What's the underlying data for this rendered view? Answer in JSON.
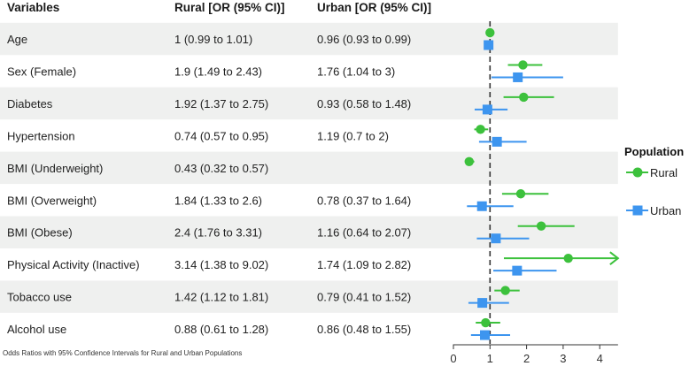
{
  "table": {
    "headers": [
      "Variables",
      "Rural [OR (95% CI)]",
      "Urban [OR (95% CI)]"
    ],
    "rows": [
      {
        "variable": "Age",
        "rural": "1 (0.99 to 1.01)",
        "urban": "0.96 (0.93 to 0.99)"
      },
      {
        "variable": "Sex (Female)",
        "rural": "1.9 (1.49 to 2.43)",
        "urban": "1.76 (1.04 to 3)"
      },
      {
        "variable": "Diabetes",
        "rural": "1.92 (1.37 to 2.75)",
        "urban": "0.93 (0.58 to 1.48)"
      },
      {
        "variable": "Hypertension",
        "rural": "0.74 (0.57 to 0.95)",
        "urban": "1.19 (0.7 to 2)"
      },
      {
        "variable": "BMI (Underweight)",
        "rural": "0.43 (0.32 to 0.57)",
        "urban": ""
      },
      {
        "variable": "BMI (Overweight)",
        "rural": "1.84 (1.33 to 2.6)",
        "urban": "0.78 (0.37 to 1.64)"
      },
      {
        "variable": "BMI (Obese)",
        "rural": "2.4 (1.76 to 3.31)",
        "urban": "1.16 (0.64 to 2.07)"
      },
      {
        "variable": "Physical Activity (Inactive)",
        "rural": "3.14 (1.38 to 9.02)",
        "urban": "1.74 (1.09 to 2.82)"
      },
      {
        "variable": "Tobacco use",
        "rural": "1.42 (1.12 to 1.81)",
        "urban": "0.79 (0.41 to 1.52)"
      },
      {
        "variable": "Alcohol use",
        "rural": "0.88 (0.61 to 1.28)",
        "urban": "0.86 (0.48 to 1.55)"
      }
    ]
  },
  "caption": "Odds Ratios with 95% Confidence Intervals for Rural and Urban Populations",
  "chart_data": {
    "type": "forest",
    "categories": [
      "Age",
      "Sex (Female)",
      "Diabetes",
      "Hypertension",
      "BMI (Underweight)",
      "BMI (Overweight)",
      "BMI (Obese)",
      "Physical Activity (Inactive)",
      "Tobacco use",
      "Alcohol use"
    ],
    "xlim": [
      0,
      4.5
    ],
    "xticks": [
      0,
      1,
      2,
      3,
      4
    ],
    "reference_line": 1,
    "legend": {
      "title": "Population",
      "position": "right"
    },
    "series": [
      {
        "name": "Rural",
        "color": "#3cc13c",
        "marker": "circle",
        "or": [
          1,
          1.9,
          1.92,
          0.74,
          0.43,
          1.84,
          2.4,
          3.14,
          1.42,
          0.88
        ],
        "lower": [
          0.99,
          1.49,
          1.37,
          0.57,
          0.32,
          1.33,
          1.76,
          1.38,
          1.12,
          0.61
        ],
        "upper": [
          1.01,
          2.43,
          2.75,
          0.95,
          0.57,
          2.6,
          3.31,
          9.02,
          1.81,
          1.28
        ]
      },
      {
        "name": "Urban",
        "color": "#3d95ef",
        "marker": "square",
        "or": [
          0.96,
          1.76,
          0.93,
          1.19,
          null,
          0.78,
          1.16,
          1.74,
          0.79,
          0.86
        ],
        "lower": [
          0.93,
          1.04,
          0.58,
          0.7,
          null,
          0.37,
          0.64,
          1.09,
          0.41,
          0.48
        ],
        "upper": [
          0.99,
          3,
          1.48,
          2,
          null,
          1.64,
          2.07,
          2.82,
          1.52,
          1.55
        ]
      }
    ]
  }
}
